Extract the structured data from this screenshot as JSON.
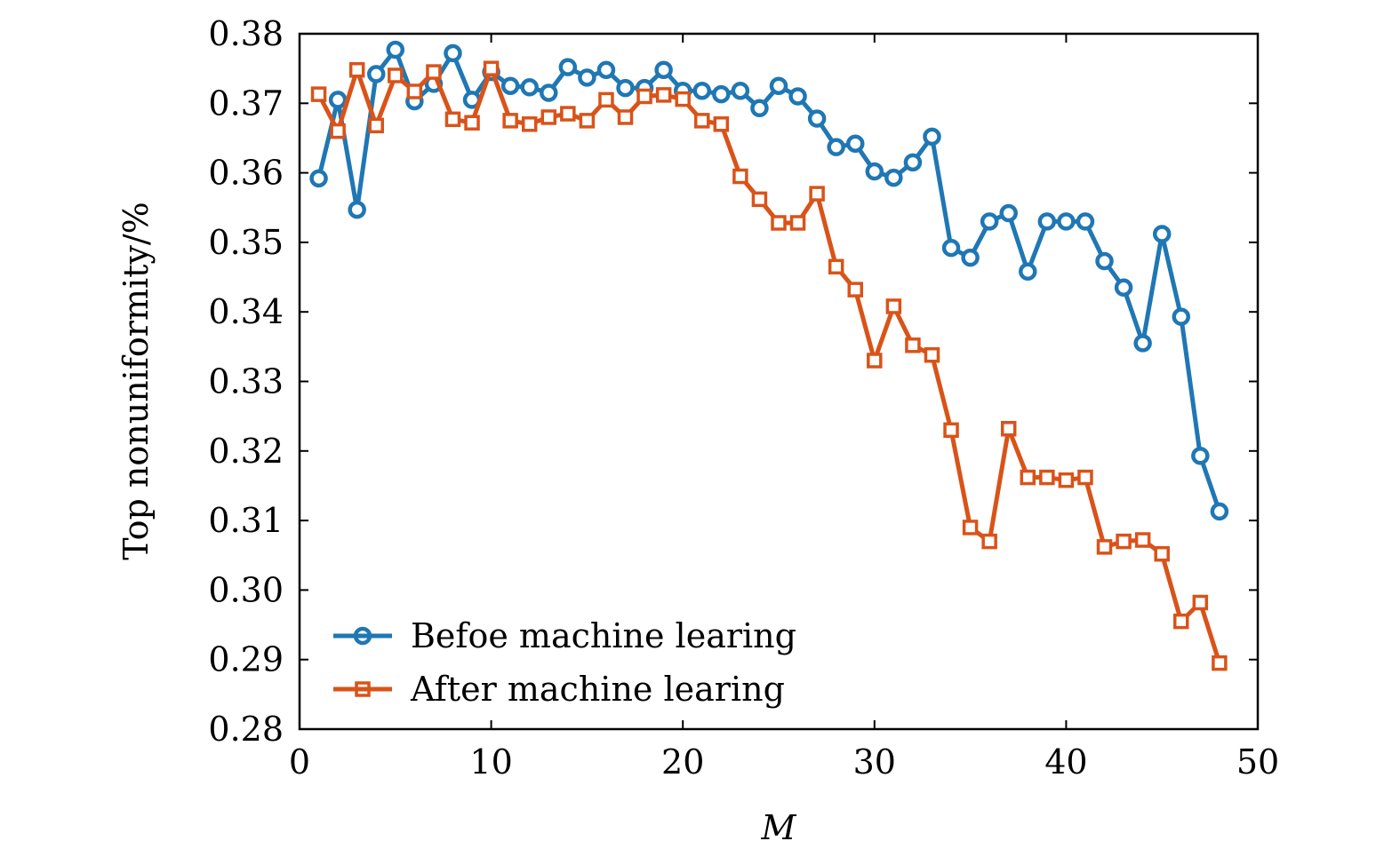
{
  "chart_data": {
    "type": "line",
    "title": "",
    "xlabel": "M",
    "ylabel": "Top nonuniformity/%",
    "xlim": [
      0,
      50
    ],
    "ylim": [
      0.28,
      0.38
    ],
    "xticks": [
      0,
      10,
      20,
      30,
      40,
      50
    ],
    "yticks": [
      "0.28",
      "0.29",
      "0.30",
      "0.31",
      "0.32",
      "0.33",
      "0.34",
      "0.35",
      "0.36",
      "0.37",
      "0.38"
    ],
    "grid": false,
    "legend_position": "bottom-left",
    "x": [
      1,
      2,
      3,
      4,
      5,
      6,
      7,
      8,
      9,
      10,
      11,
      12,
      13,
      14,
      15,
      16,
      17,
      18,
      19,
      20,
      21,
      22,
      23,
      24,
      25,
      26,
      27,
      28,
      29,
      30,
      31,
      32,
      33,
      34,
      35,
      36,
      37,
      38,
      39,
      40,
      41,
      42,
      43,
      44,
      45,
      46,
      47,
      48
    ],
    "series": [
      {
        "name": "Befoe machine learing",
        "color": "#1f77b4",
        "marker": "circle",
        "values": [
          0.3592,
          0.3705,
          0.3547,
          0.3742,
          0.3777,
          0.3703,
          0.3728,
          0.3772,
          0.3705,
          0.3745,
          0.3725,
          0.3723,
          0.3715,
          0.3752,
          0.3737,
          0.3748,
          0.3722,
          0.3722,
          0.3748,
          0.3718,
          0.3718,
          0.3713,
          0.3718,
          0.3693,
          0.3725,
          0.371,
          0.3678,
          0.3637,
          0.3642,
          0.3602,
          0.3593,
          0.3615,
          0.3652,
          0.3492,
          0.3478,
          0.353,
          0.3542,
          0.3458,
          0.353,
          0.353,
          0.353,
          0.3473,
          0.3435,
          0.3355,
          0.3512,
          0.3393,
          0.3193,
          0.3113
        ]
      },
      {
        "name": "After machine learing",
        "color": "#d95319",
        "marker": "square",
        "values": [
          0.3713,
          0.366,
          0.3748,
          0.3668,
          0.374,
          0.3717,
          0.3745,
          0.3677,
          0.3672,
          0.375,
          0.3675,
          0.367,
          0.368,
          0.3685,
          0.3675,
          0.3705,
          0.368,
          0.371,
          0.3712,
          0.3706,
          0.3675,
          0.367,
          0.3595,
          0.3562,
          0.3528,
          0.3528,
          0.357,
          0.3465,
          0.3432,
          0.333,
          0.3408,
          0.3352,
          0.3338,
          0.323,
          0.309,
          0.307,
          0.3232,
          0.3162,
          0.3162,
          0.3158,
          0.3162,
          0.3062,
          0.307,
          0.3072,
          0.3052,
          0.2955,
          0.2982,
          0.2895
        ]
      }
    ]
  }
}
